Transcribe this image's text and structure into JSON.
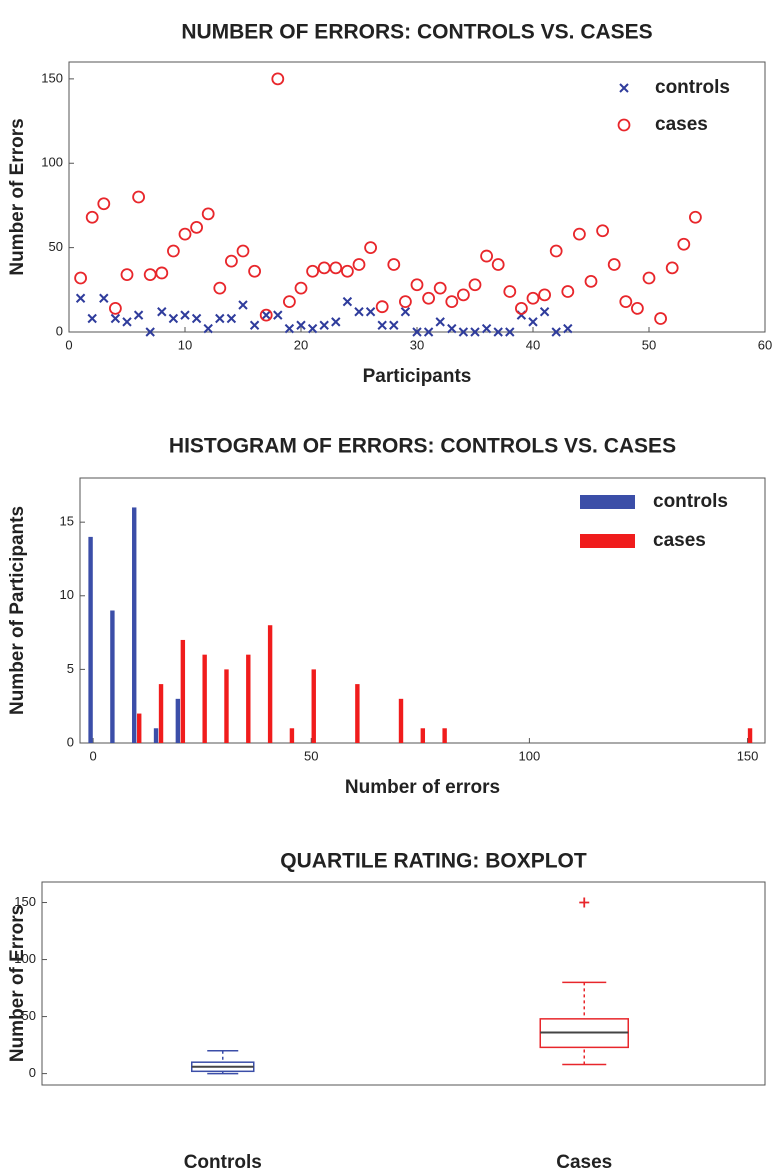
{
  "chart_data": [
    {
      "type": "scatter",
      "title": "NUMBER OF ERRORS: CONTROLS VS. CASES",
      "xlabel": "Participants",
      "ylabel": "Number of Errors",
      "xlim": [
        0,
        60
      ],
      "xticks": [
        0,
        10,
        20,
        30,
        40,
        50,
        60
      ],
      "ylim": [
        0,
        160
      ],
      "yticks": [
        0,
        50,
        100,
        150
      ],
      "legend": "upper right",
      "series": [
        {
          "name": "controls",
          "color": "#2f3c9c",
          "marker": "x",
          "x": [
            1,
            2,
            3,
            4,
            5,
            6,
            7,
            8,
            9,
            10,
            11,
            12,
            13,
            14,
            15,
            16,
            17,
            18,
            19,
            20,
            21,
            22,
            23,
            24,
            25,
            26,
            27,
            28,
            29,
            30,
            31,
            32,
            33,
            34,
            35,
            36,
            37,
            38,
            39,
            40,
            41,
            42,
            43
          ],
          "values": [
            20,
            8,
            20,
            8,
            6,
            10,
            0,
            12,
            8,
            10,
            8,
            2,
            8,
            8,
            16,
            4,
            10,
            10,
            2,
            4,
            2,
            4,
            6,
            18,
            12,
            12,
            4,
            4,
            12,
            0,
            0,
            6,
            2,
            0,
            0,
            2,
            0,
            0,
            10,
            6,
            12,
            0,
            2
          ]
        },
        {
          "name": "cases",
          "color": "#e8262b",
          "marker": "o",
          "x": [
            1,
            2,
            3,
            4,
            5,
            6,
            7,
            8,
            9,
            10,
            11,
            12,
            13,
            14,
            15,
            16,
            17,
            18,
            19,
            20,
            21,
            22,
            23,
            24,
            25,
            26,
            27,
            28,
            29,
            30,
            31,
            32,
            33,
            34,
            35,
            36,
            37,
            38,
            39,
            40,
            41,
            42,
            43,
            44,
            45,
            46,
            47,
            48,
            49,
            50,
            51,
            52,
            53,
            54
          ],
          "values": [
            32,
            68,
            76,
            14,
            34,
            80,
            34,
            35,
            48,
            58,
            62,
            70,
            26,
            42,
            48,
            36,
            10,
            150,
            18,
            26,
            36,
            38,
            38,
            36,
            40,
            50,
            15,
            40,
            18,
            28,
            20,
            26,
            18,
            22,
            28,
            45,
            40,
            24,
            14,
            20,
            22,
            48,
            24,
            58,
            30,
            60,
            40,
            18,
            14,
            32,
            8,
            38,
            52,
            68
          ]
        }
      ]
    },
    {
      "type": "bar",
      "title": "HISTOGRAM OF ERRORS: CONTROLS VS. CASES",
      "xlabel": "Number of errors",
      "ylabel": "Number of Participants",
      "xlim": [
        -3,
        154
      ],
      "xticks": [
        0,
        50,
        100,
        150
      ],
      "ylim": [
        0,
        18
      ],
      "yticks": [
        0,
        5,
        10,
        15
      ],
      "legend": "upper right",
      "series": [
        {
          "name": "controls",
          "color": "#3b4ea8",
          "x": [
            0,
            5,
            10,
            15,
            20
          ],
          "values": [
            14,
            9,
            16,
            1,
            3
          ]
        },
        {
          "name": "cases",
          "color": "#f01c1c",
          "x": [
            10,
            15,
            20,
            25,
            30,
            35,
            40,
            45,
            50,
            60,
            70,
            75,
            80,
            150
          ],
          "values": [
            2,
            4,
            7,
            6,
            5,
            6,
            8,
            1,
            5,
            4,
            3,
            1,
            1,
            1
          ]
        }
      ]
    },
    {
      "type": "box",
      "title": "QUARTILE RATING: BOXPLOT",
      "ylabel": "Number of Errors",
      "categories": [
        "Controls",
        "Cases"
      ],
      "ylim": [
        -10,
        168
      ],
      "yticks": [
        0,
        50,
        100,
        150
      ],
      "boxes": [
        {
          "color": "#3b4ea8",
          "min": 0,
          "q1": 2,
          "median": 6,
          "q3": 10,
          "max": 20
        },
        {
          "color": "#e8262b",
          "min": 8,
          "q1": 23,
          "median": 36,
          "q3": 48,
          "max": 80,
          "outliers": [
            150
          ]
        }
      ]
    }
  ]
}
